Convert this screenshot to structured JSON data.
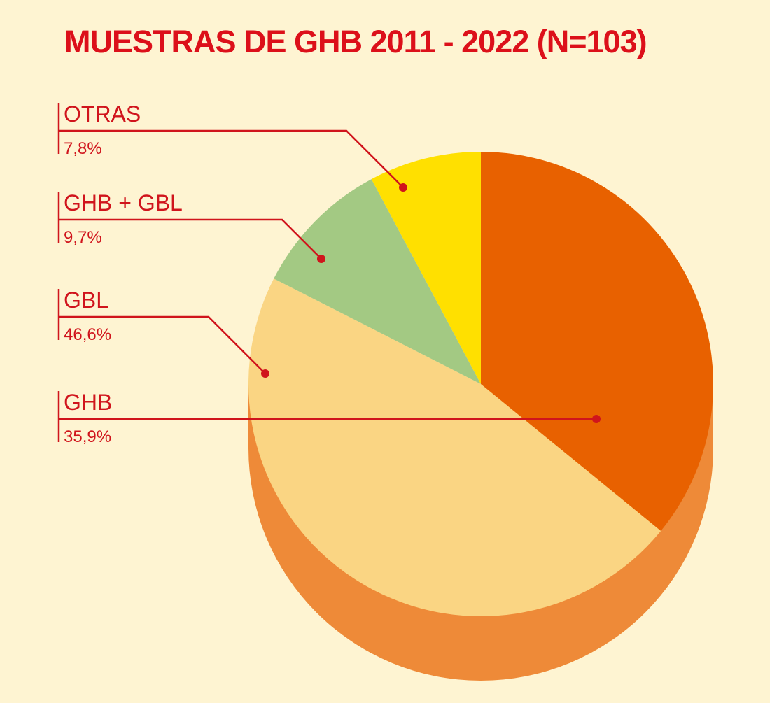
{
  "chart_data": {
    "type": "pie",
    "title": "MUESTRAS DE GHB 2011 - 2022 (N=103)",
    "start": "top",
    "direction": "clockwise",
    "style": "3d",
    "slices": [
      {
        "label": "GHB",
        "value": 35.9,
        "display": "35,9%",
        "color": "#E86100"
      },
      {
        "label": "GBL",
        "value": 46.6,
        "display": "46,6%",
        "color": "#FAD583"
      },
      {
        "label": "GHB + GBL",
        "value": 9.7,
        "display": "9,7%",
        "color": "#A3C983"
      },
      {
        "label": "OTRAS",
        "value": 7.8,
        "display": "7,8%",
        "color": "#FFE000"
      }
    ],
    "side_color": "#EE8A38",
    "label_color": "#D0141C",
    "background": "#FEF4D2"
  }
}
